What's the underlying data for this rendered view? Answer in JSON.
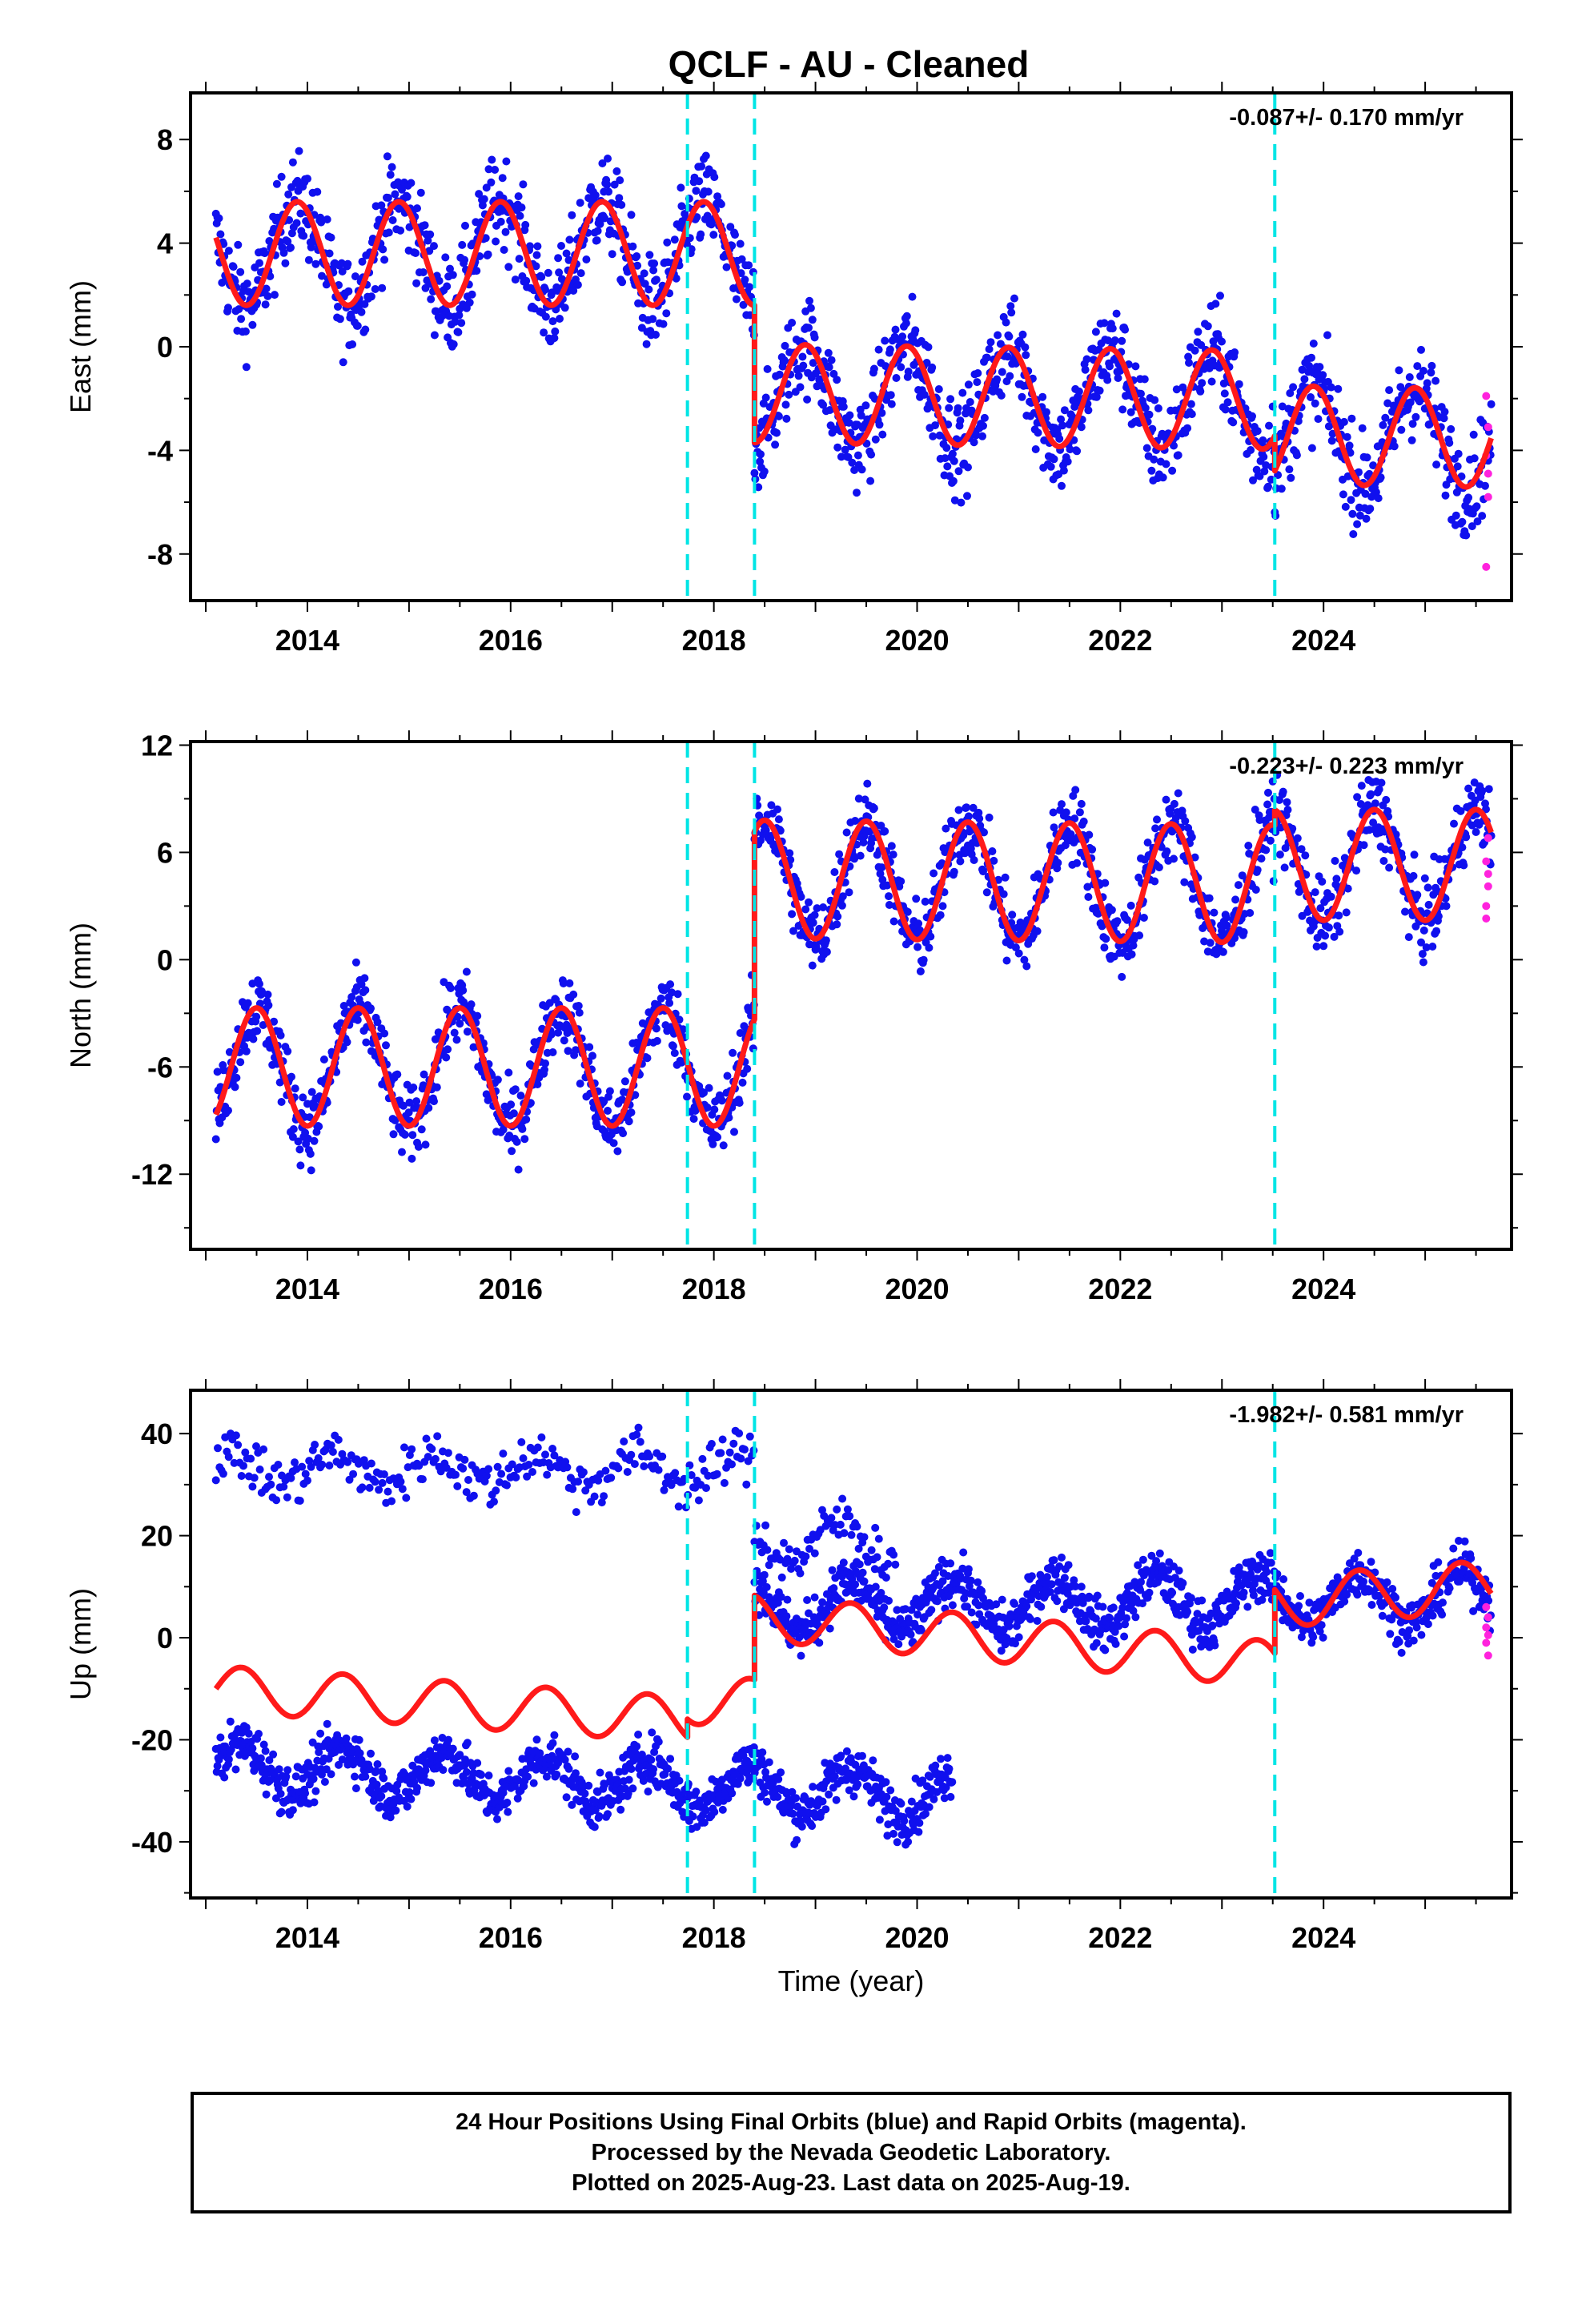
{
  "title": "QCLF  - AU - Cleaned",
  "colors": {
    "final_orbits": "#1010ee",
    "rapid_orbits": "#ff22dd",
    "model": "#ff1a1a",
    "equipment_change": "#00e5e5"
  },
  "chart_data": [
    {
      "type": "scatter",
      "id": "east",
      "ylabel": "East (mm)",
      "xlabel": "",
      "ylim": [
        -9.8,
        9.8
      ],
      "xlim": [
        2012.85,
        2025.85
      ],
      "yticks": [
        -8,
        -4,
        0,
        4,
        8
      ],
      "xticks": [
        2014,
        2016,
        2018,
        2020,
        2022,
        2024
      ],
      "rate": "-0.087+/- 0.170 mm/yr",
      "vertical_lines": [
        2017.74,
        2018.4,
        2023.52
      ],
      "segments": [
        {
          "start": 2013.1,
          "end": 2018.4,
          "offset": 3.6,
          "trend": 0.0,
          "amp": 2.0,
          "phase": 2013.65
        },
        {
          "start": 2018.4,
          "end": 2023.52,
          "offset": -1.8,
          "trend": -0.05,
          "amp": 1.9,
          "phase": 2013.65
        },
        {
          "start": 2023.52,
          "end": 2025.65,
          "offset": -3.4,
          "trend": -0.06,
          "amp": 1.9,
          "phase": 2013.65
        }
      ],
      "noise": 1.3,
      "rapid_values": [
        -1.9,
        -3.1,
        -4.2,
        -5.8,
        -8.5,
        -4.9
      ]
    },
    {
      "type": "scatter",
      "id": "north",
      "ylabel": "North (mm)",
      "xlabel": "",
      "ylim": [
        -16.2,
        12.2
      ],
      "xlim": [
        2012.85,
        2025.85
      ],
      "yticks": [
        -12,
        -6,
        0,
        6,
        12
      ],
      "xticks": [
        2014,
        2016,
        2018,
        2020,
        2022,
        2024
      ],
      "rate": "-0.223+/- 0.223 mm/yr",
      "vertical_lines": [
        2017.74,
        2018.4,
        2023.52
      ],
      "segments": [
        {
          "start": 2013.1,
          "end": 2018.4,
          "offset": -6.0,
          "trend": 0.0,
          "amp": 3.3,
          "phase": 2013.25
        },
        {
          "start": 2018.4,
          "end": 2023.52,
          "offset": 4.5,
          "trend": -0.05,
          "amp": 3.3,
          "phase": 2013.25
        },
        {
          "start": 2023.52,
          "end": 2025.65,
          "offset": 5.3,
          "trend": 0.0,
          "amp": 3.1,
          "phase": 2013.25
        }
      ],
      "noise": 1.5,
      "rapid_values": [
        2.3,
        4.1,
        5.5,
        6.8,
        3.0,
        4.8
      ]
    },
    {
      "type": "scatter",
      "id": "up",
      "ylabel": "Up (mm)",
      "xlabel": "Time (year)",
      "ylim": [
        -51,
        48.5
      ],
      "xlim": [
        2012.85,
        2025.85
      ],
      "yticks": [
        -40,
        -20,
        0,
        20,
        40
      ],
      "xticks": [
        2014,
        2016,
        2018,
        2020,
        2022,
        2024
      ],
      "rate": "-1.982+/- 0.581 mm/yr",
      "vertical_lines": [
        2017.74,
        2018.4,
        2023.52
      ],
      "segments": [
        {
          "start": 2013.1,
          "end": 2020.35,
          "offset": -25.0,
          "trend": -0.8,
          "amp": 4.5,
          "phase": 2013.1
        },
        {
          "start": 2018.4,
          "end": 2025.65,
          "offset": 6.0,
          "trend": 0.3,
          "amp": 5.0,
          "phase": 2013.1
        }
      ],
      "outliers": [
        {
          "start": 2013.1,
          "end": 2018.4,
          "offset": 33.0,
          "trend": 0.0,
          "amp": 3.0
        },
        {
          "start": 2018.4,
          "end": 2019.8,
          "offset": 19.0,
          "trend": 0.0,
          "amp": 4.0
        }
      ],
      "noise": 3.5,
      "model_segments": [
        {
          "start": 2013.1,
          "end": 2017.74,
          "offset": -10.0,
          "trend": -1.3,
          "amp": 4.5,
          "phase": 2013.1
        },
        {
          "start": 2017.74,
          "end": 2018.4,
          "offset": -12.5,
          "trend": 0.0,
          "amp": 4.5,
          "phase": 2013.1
        },
        {
          "start": 2018.4,
          "end": 2023.52,
          "offset": 4.0,
          "trend": -1.8,
          "amp": 4.5,
          "phase": 2013.1
        },
        {
          "start": 2023.52,
          "end": 2025.65,
          "offset": 7.0,
          "trend": 1.5,
          "amp": 5.0,
          "phase": 2013.1
        }
      ],
      "rapid_values": [
        6.0,
        4.0,
        2.0,
        0.5,
        -1.0,
        -3.5
      ]
    }
  ],
  "footer": {
    "line1": "24 Hour Positions Using Final Orbits (blue) and Rapid Orbits (magenta).",
    "line2": "Processed by the Nevada Geodetic Laboratory.",
    "line3": "Plotted on 2025-Aug-23. Last data on 2025-Aug-19."
  }
}
